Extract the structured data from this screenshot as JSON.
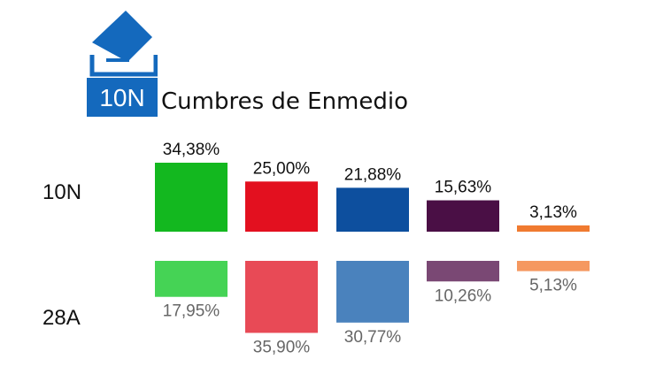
{
  "header": {
    "badge_text": "10N",
    "title": "Cumbres de Enmedio"
  },
  "colors": {
    "logo_blue": "#1469bd",
    "label_top": "#111111",
    "label_bottom": "#666666"
  },
  "chart_data": {
    "type": "bar",
    "title": "Cumbres de Enmedio",
    "rows": [
      "10N",
      "28A"
    ],
    "series": [
      {
        "name": "10N",
        "values": [
          34.38,
          25.0,
          21.88,
          15.63,
          3.13
        ],
        "labels": [
          "34,38%",
          "25,00%",
          "21,88%",
          "15,63%",
          "3,13%"
        ],
        "colors": [
          "#13b81f",
          "#e3101f",
          "#0d4f9e",
          "#4a0f45",
          "#f07a30"
        ]
      },
      {
        "name": "28A",
        "values": [
          17.95,
          35.9,
          30.77,
          10.26,
          5.13
        ],
        "labels": [
          "17,95%",
          "35,90%",
          "30,77%",
          "10,26%",
          "5,13%"
        ],
        "colors": [
          "#45d355",
          "#e84a56",
          "#4a82bd",
          "#7a4874",
          "#f59860"
        ]
      }
    ]
  }
}
